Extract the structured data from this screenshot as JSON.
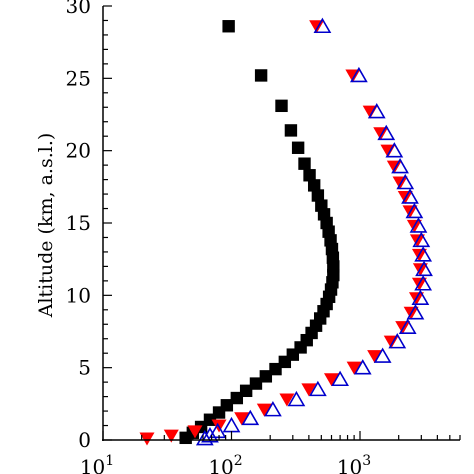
{
  "chart_data": {
    "type": "scatter",
    "title": "",
    "xlabel": "",
    "ylabel": "Altitude (km, a.s.l.)",
    "xscale": "log",
    "xlim": [
      10,
      6000
    ],
    "ylim": [
      0,
      30
    ],
    "x_ticks": [
      {
        "base": "10",
        "exp": "1",
        "value": 10
      },
      {
        "base": "10",
        "exp": "2",
        "value": 100
      },
      {
        "base": "10",
        "exp": "3",
        "value": 1000
      }
    ],
    "y_ticks": [
      "0",
      "5",
      "10",
      "15",
      "20",
      "25",
      "30"
    ],
    "grid": false,
    "legend": "none",
    "series": [
      {
        "marker": "square",
        "color": "#000000",
        "points": [
          [
            95,
            28.6
          ],
          [
            170,
            25.2
          ],
          [
            245,
            23.1
          ],
          [
            290,
            21.4
          ],
          [
            330,
            20.2
          ],
          [
            370,
            19.1
          ],
          [
            405,
            18.3
          ],
          [
            440,
            17.6
          ],
          [
            470,
            16.9
          ],
          [
            500,
            16.2
          ],
          [
            525,
            15.6
          ],
          [
            550,
            15.0
          ],
          [
            570,
            14.4
          ],
          [
            590,
            13.8
          ],
          [
            605,
            13.2
          ],
          [
            615,
            12.6
          ],
          [
            620,
            12.0
          ],
          [
            620,
            11.4
          ],
          [
            610,
            10.9
          ],
          [
            595,
            10.4
          ],
          [
            575,
            9.9
          ],
          [
            550,
            9.4
          ],
          [
            520,
            8.9
          ],
          [
            490,
            8.4
          ],
          [
            455,
            7.9
          ],
          [
            420,
            7.4
          ],
          [
            385,
            6.9
          ],
          [
            345,
            6.4
          ],
          [
            300,
            5.9
          ],
          [
            260,
            5.4
          ],
          [
            220,
            4.9
          ],
          [
            185,
            4.4
          ],
          [
            155,
            3.9
          ],
          [
            130,
            3.4
          ],
          [
            110,
            2.9
          ],
          [
            92,
            2.4
          ],
          [
            80,
            1.9
          ],
          [
            68,
            1.4
          ],
          [
            58,
            0.9
          ],
          [
            50,
            0.5
          ],
          [
            44,
            0.15
          ]
        ]
      },
      {
        "marker": "triangle-down",
        "color": "#ff0000",
        "points": [
          [
            460,
            28.6
          ],
          [
            880,
            25.2
          ],
          [
            1200,
            22.7
          ],
          [
            1450,
            21.2
          ],
          [
            1650,
            20.0
          ],
          [
            1850,
            18.9
          ],
          [
            2050,
            17.8
          ],
          [
            2250,
            16.8
          ],
          [
            2450,
            15.8
          ],
          [
            2650,
            14.8
          ],
          [
            2800,
            13.8
          ],
          [
            2900,
            12.8
          ],
          [
            2950,
            11.8
          ],
          [
            2900,
            10.8
          ],
          [
            2750,
            9.8
          ],
          [
            2500,
            8.8
          ],
          [
            2150,
            7.8
          ],
          [
            1750,
            6.8
          ],
          [
            1300,
            5.8
          ],
          [
            900,
            5.0
          ],
          [
            600,
            4.2
          ],
          [
            400,
            3.5
          ],
          [
            270,
            2.8
          ],
          [
            180,
            2.1
          ],
          [
            120,
            1.5
          ],
          [
            80,
            1.0
          ],
          [
            52,
            0.6
          ],
          [
            34,
            0.3
          ],
          [
            22,
            0.1
          ]
        ]
      },
      {
        "marker": "triangle-up-open",
        "color": "#0000cc",
        "points": [
          [
            510,
            28.6
          ],
          [
            980,
            25.2
          ],
          [
            1350,
            22.7
          ],
          [
            1600,
            21.2
          ],
          [
            1850,
            20.0
          ],
          [
            2050,
            18.9
          ],
          [
            2250,
            17.8
          ],
          [
            2450,
            16.8
          ],
          [
            2650,
            15.8
          ],
          [
            2850,
            14.8
          ],
          [
            3000,
            13.8
          ],
          [
            3100,
            12.8
          ],
          [
            3150,
            11.8
          ],
          [
            3100,
            10.8
          ],
          [
            2950,
            9.8
          ],
          [
            2700,
            8.8
          ],
          [
            2350,
            7.8
          ],
          [
            1950,
            6.8
          ],
          [
            1500,
            5.8
          ],
          [
            1050,
            5.0
          ],
          [
            700,
            4.2
          ],
          [
            470,
            3.5
          ],
          [
            320,
            2.8
          ],
          [
            210,
            2.1
          ],
          [
            140,
            1.5
          ],
          [
            100,
            1.0
          ],
          [
            78,
            0.6
          ],
          [
            68,
            0.3
          ],
          [
            62,
            0.1
          ]
        ]
      }
    ]
  }
}
